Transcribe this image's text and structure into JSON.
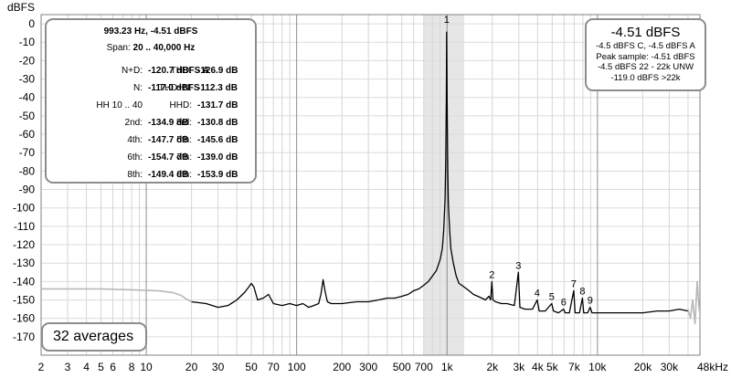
{
  "chart_data": {
    "type": "line",
    "ylabel": "dBFS",
    "xscale": "log",
    "xlim": [
      2,
      48000
    ],
    "ylim": [
      -180,
      5
    ],
    "yticks": [
      0,
      -10,
      -20,
      -30,
      -40,
      -50,
      -60,
      -70,
      -80,
      -90,
      -100,
      -110,
      -120,
      -130,
      -140,
      -150,
      -160,
      -170
    ],
    "xticks": [
      {
        "value": 2,
        "label": "2"
      },
      {
        "value": 3,
        "label": "3"
      },
      {
        "value": 4,
        "label": "4"
      },
      {
        "value": 5,
        "label": "5"
      },
      {
        "value": 6,
        "label": "6"
      },
      {
        "value": 8,
        "label": "8"
      },
      {
        "value": 10,
        "label": "10"
      },
      {
        "value": 20,
        "label": "20"
      },
      {
        "value": 30,
        "label": "30"
      },
      {
        "value": 50,
        "label": "50"
      },
      {
        "value": 70,
        "label": "70"
      },
      {
        "value": 100,
        "label": "100"
      },
      {
        "value": 200,
        "label": "200"
      },
      {
        "value": 300,
        "label": "300"
      },
      {
        "value": 500,
        "label": "500"
      },
      {
        "value": 700,
        "label": "700"
      },
      {
        "value": 1000,
        "label": "1k"
      },
      {
        "value": 2000,
        "label": "2k"
      },
      {
        "value": 3000,
        "label": "3k"
      },
      {
        "value": 4000,
        "label": "4k"
      },
      {
        "value": 5000,
        "label": "5k"
      },
      {
        "value": 7000,
        "label": "7k"
      },
      {
        "value": 10000,
        "label": "10k"
      },
      {
        "value": 20000,
        "label": "20k"
      },
      {
        "value": 30000,
        "label": "30k"
      },
      {
        "value": 48000,
        "label": "48kHz"
      }
    ],
    "grid": true,
    "highlight_band": [
      700,
      1300
    ],
    "fundamental_marker": {
      "x": 993.23,
      "label": "1"
    },
    "series": [
      {
        "color": "#000000",
        "x": [
          20,
          25,
          30,
          35,
          40,
          45,
          48,
          50,
          52,
          55,
          60,
          65,
          70,
          80,
          90,
          100,
          110,
          120,
          130,
          140,
          145,
          150,
          155,
          160,
          170,
          180,
          200,
          250,
          300,
          350,
          400,
          450,
          500,
          550,
          600,
          650,
          700,
          750,
          800,
          850,
          900,
          930,
          950,
          970,
          980,
          990,
          993.23,
          1000,
          1010,
          1020,
          1040,
          1060,
          1100,
          1150,
          1200,
          1300,
          1400,
          1500,
          1600,
          1700,
          1800,
          1900,
          1950,
          1986,
          2020,
          2100,
          2300,
          2500,
          2800,
          2979,
          3050,
          3300,
          3700,
          3972,
          4100,
          4500,
          4965,
          5100,
          5500,
          5958,
          6100,
          6500,
          6951,
          7100,
          7600,
          7944,
          8100,
          8600,
          8937,
          9200,
          10000,
          12000,
          15000,
          20000,
          25000,
          30000,
          35000,
          40000
        ],
        "y": [
          -151,
          -152,
          -154,
          -153,
          -150,
          -146,
          -143,
          -141,
          -143,
          -150,
          -149,
          -147,
          -152,
          -153,
          -152,
          -153,
          -152,
          -154,
          -153,
          -152,
          -147,
          -139,
          -146,
          -151,
          -152,
          -152,
          -152,
          -151,
          -151,
          -150,
          -149,
          -149,
          -148,
          -147,
          -145,
          -144,
          -142,
          -140,
          -137,
          -134,
          -128,
          -122,
          -112,
          -95,
          -75,
          -40,
          -4.51,
          -40,
          -78,
          -98,
          -112,
          -122,
          -130,
          -137,
          -141,
          -143,
          -145,
          -147,
          -148,
          -149,
          -150,
          -148,
          -150,
          -140,
          -150,
          -151,
          -152,
          -152,
          -153,
          -135,
          -154,
          -155,
          -155,
          -150,
          -156,
          -156,
          -152,
          -156,
          -157,
          -155,
          -157,
          -157,
          -145,
          -157,
          -157,
          -149,
          -157,
          -157,
          -154,
          -157,
          -157,
          -157,
          -157,
          -157,
          -156,
          -156,
          -155,
          -156
        ]
      },
      {
        "color": "#b8b8b8",
        "x": [
          2,
          3,
          5,
          8,
          12,
          15,
          17,
          18.5,
          20
        ],
        "y": [
          -144,
          -144,
          -144,
          -144.5,
          -145,
          -146,
          -147.5,
          -149.5,
          -151
        ]
      },
      {
        "color": "#b8b8b8",
        "x": [
          40000,
          41500,
          43000,
          44500,
          46000,
          47500
        ],
        "y": [
          -155,
          -160,
          -150,
          -163,
          -140,
          -156
        ]
      }
    ],
    "harmonic_labels": [
      {
        "x": 1986,
        "y": -140,
        "label": "2"
      },
      {
        "x": 2979,
        "y": -135,
        "label": "3"
      },
      {
        "x": 3972,
        "y": -150,
        "label": "4"
      },
      {
        "x": 4965,
        "y": -152,
        "label": "5"
      },
      {
        "x": 5958,
        "y": -155,
        "label": "6"
      },
      {
        "x": 6951,
        "y": -145,
        "label": "7"
      },
      {
        "x": 7944,
        "y": -149,
        "label": "8"
      },
      {
        "x": 8937,
        "y": -154,
        "label": "9"
      }
    ]
  },
  "stats_panel": {
    "title": "993.23 Hz, -4.51 dBFS",
    "span_label": "Span: ",
    "span_value": "20 .. 40,000 Hz",
    "rows": [
      {
        "l1": "N+D:",
        "v1": "-120.7 dBFS A",
        "l2": "THD:",
        "v2": "-126.9 dB"
      },
      {
        "l1": "N:",
        "v1": "-117.0 dBFS",
        "l2": "THD+N:",
        "v2": "-112.3 dB"
      },
      {
        "l1": "HH 10 .. 40",
        "v1": "",
        "l2": "HHD:",
        "v2": "-131.7 dB"
      },
      {
        "l1": "2nd:",
        "v1": "-134.9 dB",
        "l2": "3rd:",
        "v2": "-130.8 dB"
      },
      {
        "l1": "4th:",
        "v1": "-147.7 dB",
        "l2": "5th:",
        "v2": "-145.6 dB"
      },
      {
        "l1": "6th:",
        "v1": "-154.7 dB",
        "l2": "7th:",
        "v2": "-139.0 dB"
      },
      {
        "l1": "8th:",
        "v1": "-149.4 dB",
        "l2": "9th:",
        "v2": "-153.9 dB"
      }
    ]
  },
  "level_panel": {
    "main": "-4.51 dBFS",
    "lines": [
      "-4.5 dBFS C, -4.5 dBFS A",
      "Peak sample: -4.51 dBFS",
      "-4.5 dBFS 22 - 22k UNW",
      "-119.0 dBFS >22k"
    ]
  },
  "averages_label": "32 averages"
}
